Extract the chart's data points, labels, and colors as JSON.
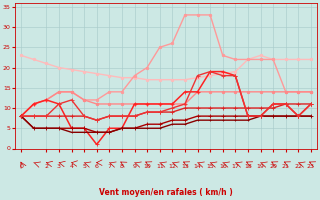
{
  "bg_color": "#cce8e4",
  "grid_color": "#aacccc",
  "xlabel": "Vent moyen/en rafales ( km/h )",
  "xlim": [
    -0.5,
    23.5
  ],
  "ylim": [
    0,
    36
  ],
  "yticks": [
    0,
    5,
    10,
    15,
    20,
    25,
    30,
    35
  ],
  "xticks": [
    0,
    2,
    3,
    4,
    5,
    6,
    7,
    8,
    9,
    10,
    11,
    12,
    13,
    14,
    15,
    16,
    17,
    18,
    19,
    20,
    21,
    22,
    23
  ],
  "series": [
    {
      "color": "#ffbbbb",
      "lw": 1.0,
      "marker": "o",
      "ms": 1.8,
      "data_x": [
        0,
        1,
        2,
        3,
        4,
        5,
        6,
        7,
        8,
        9,
        10,
        11,
        12,
        13,
        14,
        15,
        16,
        17,
        18,
        19,
        20,
        21,
        22,
        23
      ],
      "data_y": [
        23,
        22,
        21,
        20,
        19.5,
        19,
        18.5,
        18,
        17.5,
        17.5,
        17,
        17,
        17,
        17,
        17.5,
        18,
        18.5,
        19,
        22,
        23,
        22,
        22,
        22,
        22
      ]
    },
    {
      "color": "#ff9999",
      "lw": 1.0,
      "marker": "o",
      "ms": 1.8,
      "data_x": [
        0,
        1,
        2,
        3,
        4,
        5,
        6,
        7,
        8,
        9,
        10,
        11,
        12,
        13,
        14,
        15,
        16,
        17,
        18,
        19,
        20,
        21,
        22,
        23
      ],
      "data_y": [
        8,
        11,
        12,
        14,
        14,
        12,
        12,
        14,
        14,
        18,
        20,
        25,
        26,
        33,
        33,
        33,
        23,
        22,
        22,
        22,
        22,
        14,
        14,
        14
      ]
    },
    {
      "color": "#ff8888",
      "lw": 1.0,
      "marker": "o",
      "ms": 1.8,
      "data_x": [
        0,
        1,
        2,
        3,
        4,
        5,
        6,
        7,
        8,
        9,
        10,
        11,
        12,
        13,
        14,
        15,
        16,
        17,
        18,
        19,
        20,
        21,
        22,
        23
      ],
      "data_y": [
        8,
        11,
        12,
        14,
        14,
        12,
        11,
        11,
        11,
        11,
        11,
        11,
        11,
        11,
        14,
        14,
        14,
        14,
        14,
        14,
        14,
        14,
        14,
        14
      ]
    },
    {
      "color": "#ff2222",
      "lw": 1.1,
      "marker": "+",
      "ms": 3.0,
      "data_x": [
        0,
        1,
        2,
        3,
        4,
        5,
        6,
        7,
        8,
        9,
        10,
        11,
        12,
        13,
        14,
        15,
        16,
        17,
        18,
        19,
        20,
        21,
        22,
        23
      ],
      "data_y": [
        8,
        11,
        12,
        11,
        5,
        5,
        1,
        5,
        5,
        11,
        11,
        11,
        11,
        14,
        14,
        19,
        19,
        18,
        8,
        8,
        11,
        11,
        8,
        11
      ]
    },
    {
      "color": "#dd2222",
      "lw": 1.0,
      "marker": "+",
      "ms": 2.5,
      "data_x": [
        0,
        1,
        2,
        3,
        4,
        5,
        6,
        7,
        8,
        9,
        10,
        11,
        12,
        13,
        14,
        15,
        16,
        17,
        18,
        19,
        20,
        21,
        22,
        23
      ],
      "data_y": [
        8,
        8,
        8,
        8,
        8,
        8,
        7,
        8,
        8,
        8,
        9,
        9,
        9,
        10,
        10,
        10,
        10,
        10,
        10,
        10,
        10,
        11,
        11,
        11
      ]
    },
    {
      "color": "#aa0000",
      "lw": 1.0,
      "marker": "+",
      "ms": 2.5,
      "data_x": [
        0,
        1,
        2,
        3,
        4,
        5,
        6,
        7,
        8,
        9,
        10,
        11,
        12,
        13,
        14,
        15,
        16,
        17,
        18,
        19,
        20,
        21,
        22,
        23
      ],
      "data_y": [
        8,
        5,
        5,
        5,
        5,
        5,
        4,
        4,
        5,
        5,
        6,
        6,
        7,
        7,
        8,
        8,
        8,
        8,
        8,
        8,
        8,
        8,
        8,
        8
      ]
    },
    {
      "color": "#880000",
      "lw": 1.0,
      "marker": "+",
      "ms": 2.0,
      "data_x": [
        0,
        1,
        2,
        3,
        4,
        5,
        6,
        7,
        8,
        9,
        10,
        11,
        12,
        13,
        14,
        15,
        16,
        17,
        18,
        19,
        20,
        21,
        22,
        23
      ],
      "data_y": [
        8,
        5,
        5,
        5,
        4,
        4,
        4,
        4,
        5,
        5,
        5,
        5,
        6,
        6,
        7,
        7,
        7,
        7,
        7,
        8,
        8,
        8,
        8,
        8
      ]
    },
    {
      "color": "#ee3333",
      "lw": 1.0,
      "marker": "+",
      "ms": 2.5,
      "data_x": [
        0,
        1,
        2,
        3,
        4,
        5,
        6,
        7,
        8,
        9,
        10,
        11,
        12,
        13,
        14,
        15,
        16,
        17,
        18,
        19,
        20,
        21,
        22,
        23
      ],
      "data_y": [
        8,
        8,
        8,
        11,
        12,
        8,
        7,
        8,
        8,
        8,
        9,
        9,
        10,
        11,
        18,
        19,
        18,
        18,
        8,
        8,
        11,
        11,
        8,
        11
      ]
    }
  ],
  "wind_arrows_x": [
    0,
    1,
    2,
    3,
    4,
    5,
    6,
    7,
    8,
    9,
    10,
    11,
    12,
    13,
    14,
    15,
    16,
    17,
    18,
    19,
    20,
    21,
    22,
    23
  ],
  "wind_angles": [
    190,
    225,
    235,
    235,
    245,
    225,
    270,
    225,
    210,
    225,
    215,
    225,
    225,
    215,
    225,
    225,
    225,
    225,
    215,
    225,
    215,
    215,
    225,
    215
  ]
}
